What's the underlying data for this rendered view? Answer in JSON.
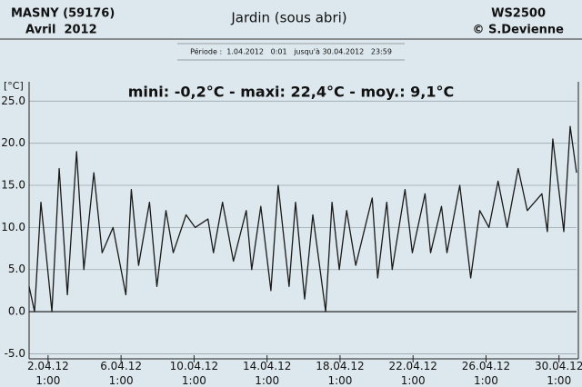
{
  "chart_data": {
    "type": "line",
    "station": "MASNY (59176)",
    "month": "Avril  2012",
    "title": "Jardin (sous abri)",
    "device": "WS2500",
    "author": "© S.Devienne",
    "period": "Période :  1.04.2012   0:01   jusqu'à 30.04.2012   23:59",
    "subtitle": "mini: -0,2°C - maxi: 22,4°C - moy.: 9,1°C",
    "y_label": "[°C]",
    "color": "#1a1a1a",
    "grid": true,
    "x": [
      1.0,
      1.3,
      1.65,
      2.25,
      2.65,
      3.1,
      3.6,
      4.0,
      4.55,
      5.0,
      5.6,
      6.3,
      6.6,
      7.0,
      7.6,
      8.0,
      8.5,
      8.9,
      9.6,
      10.1,
      10.8,
      11.1,
      11.6,
      12.2,
      12.9,
      13.2,
      13.7,
      14.25,
      14.65,
      15.25,
      15.6,
      16.1,
      16.55,
      17.25,
      17.6,
      18.0,
      18.4,
      18.9,
      19.8,
      20.1,
      20.6,
      20.9,
      21.6,
      22.0,
      22.7,
      23.0,
      23.6,
      23.9,
      24.6,
      25.2,
      25.7,
      26.2,
      26.7,
      27.2,
      27.8,
      28.3,
      29.1,
      29.4,
      29.7,
      30.3,
      30.65,
      31.0
    ],
    "values": [
      3,
      0,
      13,
      0,
      17,
      2,
      19,
      5,
      16.5,
      7,
      10,
      2,
      14.5,
      5.5,
      13,
      3,
      12,
      7,
      11.5,
      10,
      11,
      7,
      13,
      6,
      12,
      5,
      12.5,
      2.5,
      15,
      3,
      13,
      1.5,
      11.5,
      0,
      13,
      5,
      12,
      5.5,
      13.5,
      4,
      13,
      5,
      14.5,
      7,
      14,
      7,
      12.5,
      7,
      15,
      4,
      12,
      10,
      15.5,
      10,
      17,
      12,
      14,
      9.5,
      20.5,
      9.5,
      22,
      16.5
    ],
    "xlim": [
      1,
      31
    ],
    "xticks": [
      {
        "value": 2.04,
        "label": "2.04.12\n1:00"
      },
      {
        "value": 6.04,
        "label": "6.04.12\n1:00"
      },
      {
        "value": 10.04,
        "label": "10.04.12\n1:00"
      },
      {
        "value": 14.04,
        "label": "14.04.12\n1:00"
      },
      {
        "value": 18.04,
        "label": "18.04.12\n1:00"
      },
      {
        "value": 22.04,
        "label": "22.04.12\n1:00"
      },
      {
        "value": 26.04,
        "label": "26.04.12\n1:00"
      },
      {
        "value": 30.04,
        "label": "30.04.12\n1:00"
      }
    ],
    "ylim": [
      -5.6,
      27.3
    ],
    "yticks": [
      {
        "value": 25,
        "label": "25.0"
      },
      {
        "value": 20,
        "label": "20.0"
      },
      {
        "value": 15,
        "label": "15.0"
      },
      {
        "value": 10,
        "label": "10.0"
      },
      {
        "value": 5,
        "label": "5.0"
      },
      {
        "value": 0,
        "label": "0.0"
      },
      {
        "value": -5,
        "label": "-5.0"
      }
    ]
  }
}
